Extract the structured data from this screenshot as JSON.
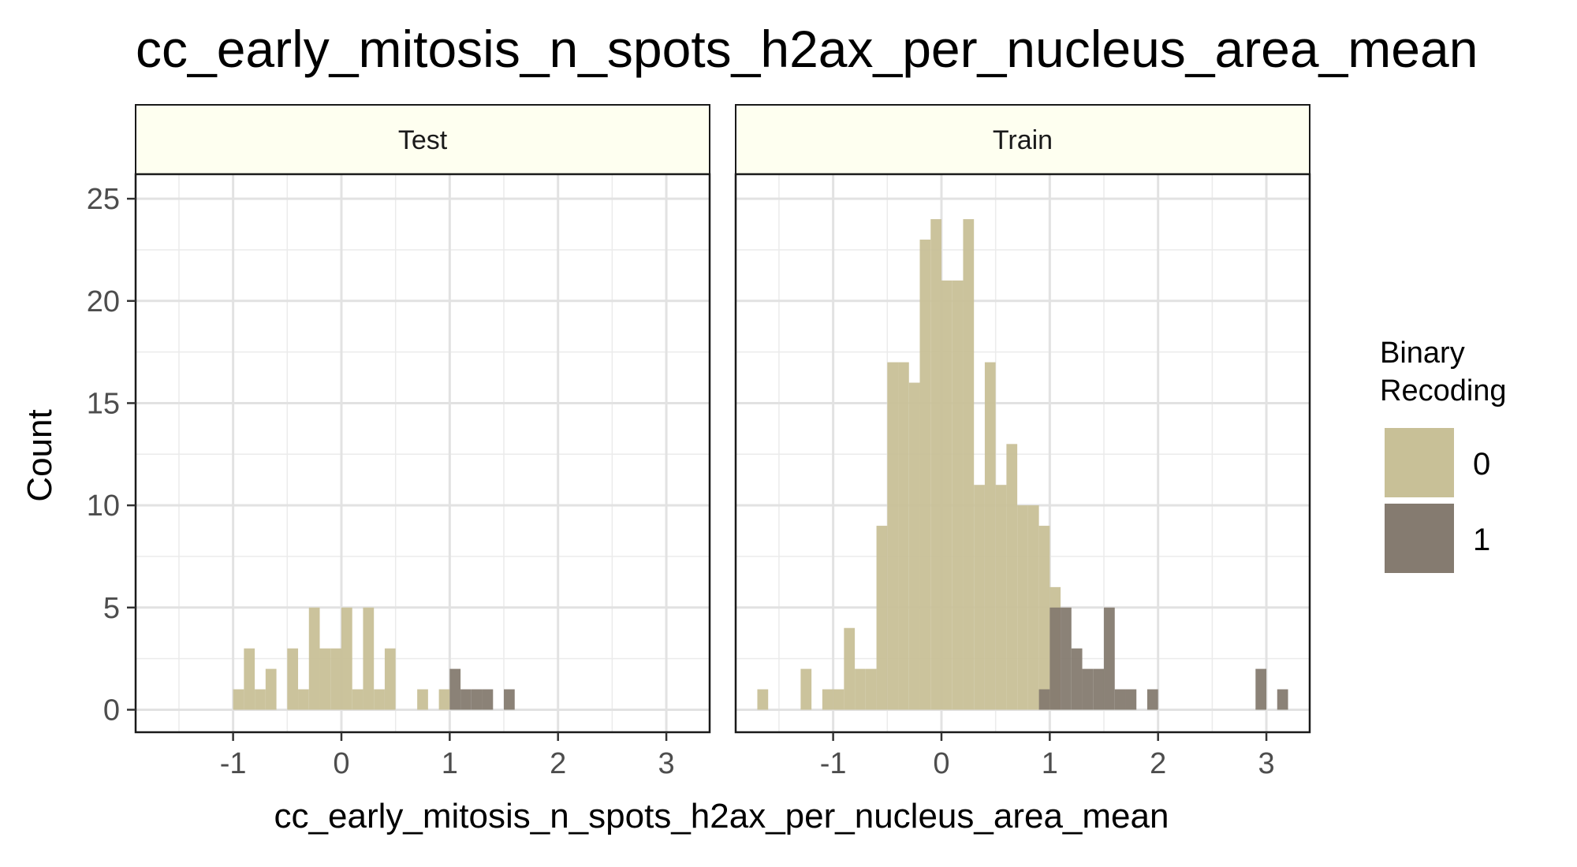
{
  "chart_data": {
    "type": "bar",
    "title": "cc_early_mitosis_n_spots_h2ax_per_nucleus_area_mean",
    "xlabel": "cc_early_mitosis_n_spots_h2ax_per_nucleus_area_mean",
    "ylabel": "Count",
    "xlim": [
      -1.9,
      3.4
    ],
    "ylim": [
      -1.1,
      26.2
    ],
    "x_ticks": [
      -1,
      0,
      1,
      2,
      3
    ],
    "x_tick_labels": [
      "-1",
      "0",
      "1",
      "2",
      "3"
    ],
    "y_ticks": [
      0,
      5,
      10,
      15,
      20,
      25
    ],
    "y_tick_labels": [
      "0",
      "5",
      "10",
      "15",
      "20",
      "25"
    ],
    "bin_width": 0.1,
    "grid": true,
    "legend": {
      "title_line1": "Binary",
      "title_line2": "Recoding",
      "position": "right",
      "entries": [
        {
          "label": "0",
          "color": "#c8c097"
        },
        {
          "label": "1",
          "color": "#857b70"
        }
      ]
    },
    "facets": [
      {
        "label": "Test",
        "series": [
          {
            "name": "0",
            "color": "#c8c097",
            "x": [
              -0.95,
              -0.85,
              -0.75,
              -0.65,
              -0.45,
              -0.35,
              -0.25,
              -0.15,
              -0.05,
              0.05,
              0.15,
              0.25,
              0.35,
              0.45,
              0.75,
              0.95
            ],
            "values": [
              1,
              3,
              1,
              2,
              3,
              1,
              5,
              3,
              3,
              5,
              1,
              5,
              1,
              3,
              1,
              1
            ]
          },
          {
            "name": "1",
            "color": "#857b70",
            "x": [
              1.05,
              1.15,
              1.25,
              1.35,
              1.55
            ],
            "values": [
              2,
              1,
              1,
              1,
              1
            ]
          }
        ]
      },
      {
        "label": "Train",
        "series": [
          {
            "name": "0",
            "color": "#c8c097",
            "x": [
              -1.65,
              -1.25,
              -1.05,
              -0.95,
              -0.85,
              -0.75,
              -0.65,
              -0.55,
              -0.45,
              -0.35,
              -0.25,
              -0.15,
              -0.05,
              0.05,
              0.15,
              0.25,
              0.35,
              0.45,
              0.55,
              0.65,
              0.75,
              0.85,
              0.95,
              1.05
            ],
            "values": [
              1,
              2,
              1,
              1,
              4,
              2,
              2,
              9,
              17,
              17,
              16,
              23,
              24,
              21,
              21,
              24,
              11,
              17,
              11,
              13,
              10,
              10,
              9,
              6
            ]
          },
          {
            "name": "1",
            "color": "#857b70",
            "x": [
              0.95,
              1.05,
              1.15,
              1.25,
              1.35,
              1.45,
              1.55,
              1.65,
              1.75,
              1.95,
              2.95,
              3.15
            ],
            "values": [
              1,
              5,
              5,
              3,
              2,
              2,
              5,
              1,
              1,
              1,
              2,
              1
            ]
          }
        ]
      }
    ]
  }
}
